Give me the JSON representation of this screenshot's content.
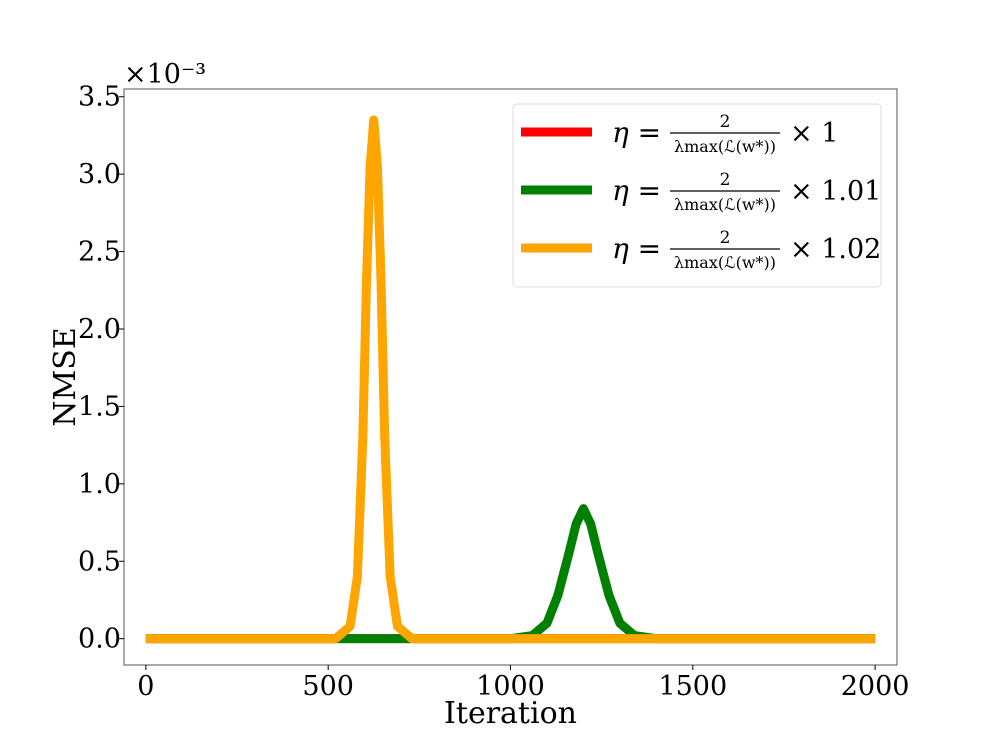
{
  "chart_data": {
    "type": "line",
    "title": "",
    "xlabel": "Iteration",
    "ylabel": "NMSE",
    "y_scale_label": "×10⁻³",
    "xlim": [
      -60,
      2060
    ],
    "ylim": [
      -0.17,
      3.55
    ],
    "xticks": [
      0,
      500,
      1000,
      1500,
      2000
    ],
    "yticks": [
      0.0,
      0.5,
      1.0,
      1.5,
      2.0,
      2.5,
      3.0,
      3.5
    ],
    "xtick_labels": [
      "0",
      "500",
      "1000",
      "1500",
      "2000"
    ],
    "ytick_labels": [
      "0.0",
      "0.5",
      "1.0",
      "1.5",
      "2.0",
      "2.5",
      "3.0",
      "3.5"
    ],
    "grid": false,
    "legend_position": "top-right",
    "series": [
      {
        "name": "η = 2 / λmax(ℒ(w*)) × 1",
        "legend": {
          "lhs": "η = ",
          "num": "2",
          "den": "λmax(ℒ(w*))",
          "suffix": "× 1"
        },
        "color": "#ff0000",
        "x": [
          0,
          2000
        ],
        "y": [
          0.0,
          0.0
        ]
      },
      {
        "name": "η = 2 / λmax(ℒ(w*)) × 1.01",
        "legend": {
          "lhs": "η = ",
          "num": "2",
          "den": "λmax(ℒ(w*))",
          "suffix": "× 1.01"
        },
        "color": "#008000",
        "x": [
          0,
          1000,
          1060,
          1100,
          1130,
          1160,
          1180,
          1200,
          1220,
          1240,
          1270,
          1300,
          1340,
          1400,
          2000
        ],
        "y": [
          0.0,
          0.0,
          0.02,
          0.1,
          0.28,
          0.55,
          0.74,
          0.84,
          0.74,
          0.55,
          0.28,
          0.1,
          0.02,
          0.0,
          0.0
        ]
      },
      {
        "name": "η = 2 / λmax(ℒ(w*)) × 1.02",
        "legend": {
          "lhs": "η = ",
          "num": "2",
          "den": "λmax(ℒ(w*))",
          "suffix": "× 1.02"
        },
        "color": "#ffa500",
        "x": [
          0,
          520,
          560,
          580,
          595,
          605,
          615,
          625,
          635,
          645,
          655,
          670,
          690,
          730,
          2000
        ],
        "y": [
          0.0,
          0.0,
          0.08,
          0.4,
          1.3,
          2.3,
          3.05,
          3.35,
          3.05,
          2.3,
          1.3,
          0.4,
          0.08,
          0.0,
          0.0
        ]
      }
    ]
  }
}
